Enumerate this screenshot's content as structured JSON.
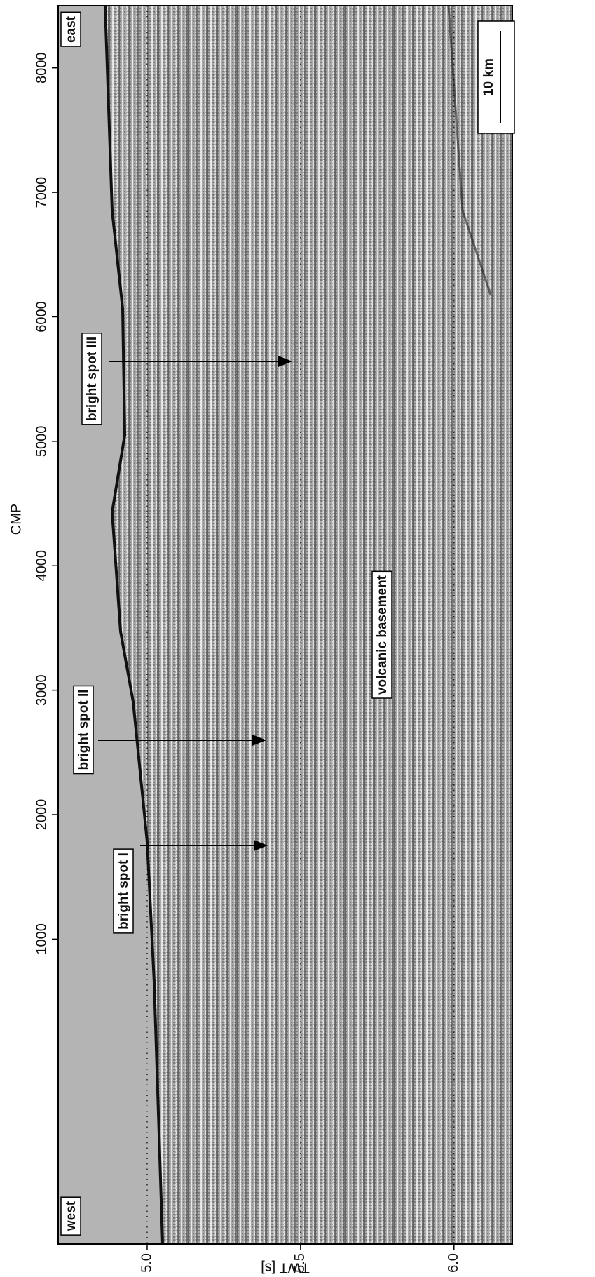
{
  "chart_data": {
    "type": "seismic-section",
    "xlabel": "CMP",
    "ylabel": "TWT [s]",
    "xlim": [
      -1450,
      8500
    ],
    "xticks": [
      1000,
      2000,
      3000,
      4000,
      5000,
      6000,
      7000,
      8000
    ],
    "ylim": [
      4.71,
      6.19
    ],
    "yticks": [
      {
        "value": 5,
        "label": "5.0"
      },
      {
        "value": 5.5,
        "label": "5.5"
      },
      {
        "value": 6,
        "label": "6.0"
      }
    ],
    "grid": true,
    "annotations": [
      "east",
      "west",
      "bright spot I",
      "bright spot II",
      "bright spot III",
      "volcanic basement"
    ],
    "scale_bar": "10 km"
  }
}
